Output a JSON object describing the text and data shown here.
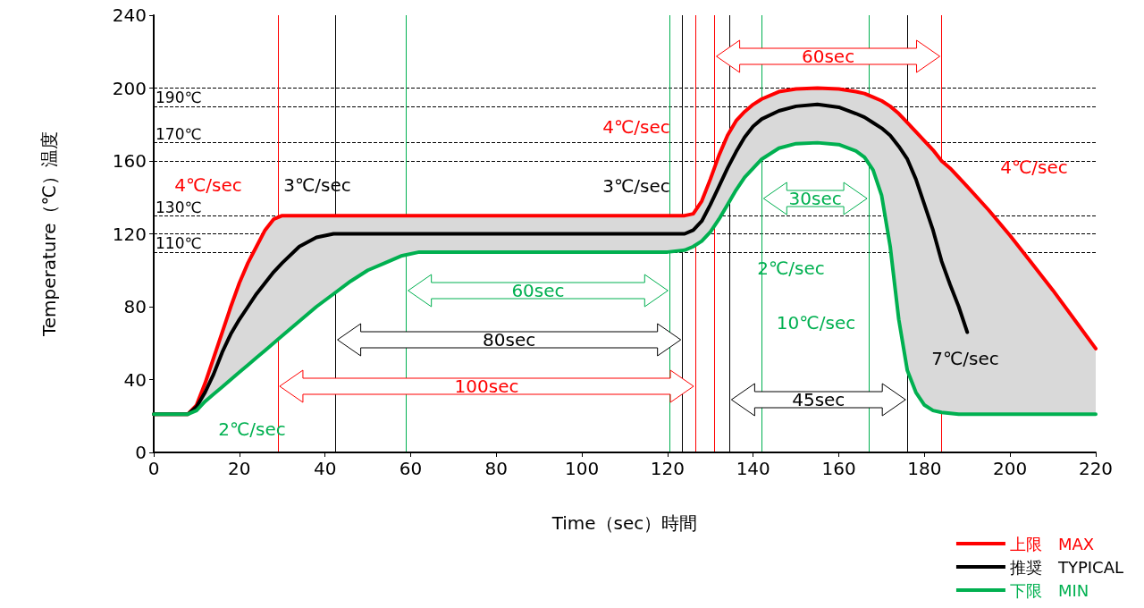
{
  "chart_data": {
    "type": "line",
    "xlabel": "Time（sec）時間",
    "ylabel": "Temperature（℃）温度",
    "x": [
      0,
      8,
      10,
      12,
      14,
      16,
      18,
      20,
      22,
      24,
      26,
      28,
      30,
      34,
      38,
      42,
      46,
      50,
      54,
      58,
      62,
      120,
      124,
      126,
      128,
      130,
      132,
      134,
      136,
      138,
      140,
      142,
      146,
      150,
      155,
      160,
      164,
      166,
      168,
      170,
      172,
      174,
      176,
      178,
      180,
      182,
      184,
      186,
      188,
      190,
      195,
      200,
      205,
      210,
      215,
      220
    ],
    "series": [
      {
        "name": "上限　MAX",
        "color": "#ff0000",
        "values": [
          21,
          21,
          26,
          38,
          52,
          66,
          80,
          93,
          104,
          113,
          122,
          128,
          130,
          130,
          130,
          130,
          130,
          130,
          130,
          130,
          130,
          130,
          130,
          131,
          138,
          150,
          163,
          174,
          182,
          187,
          191,
          194,
          198,
          199.5,
          200,
          199.5,
          198,
          197,
          195,
          193,
          190,
          186,
          181,
          176,
          171,
          166,
          160,
          156,
          151,
          146,
          133,
          119,
          104,
          89,
          73,
          57
        ]
      },
      {
        "name": "推奨　TYPICAL",
        "color": "#000000",
        "values": [
          21,
          21,
          25,
          33,
          43,
          55,
          65,
          73,
          80,
          87,
          93,
          99,
          104,
          113,
          118,
          120,
          120,
          120,
          120,
          120,
          120,
          120,
          120,
          122,
          127,
          136,
          146,
          156,
          165,
          173,
          179,
          183,
          187.5,
          190,
          191,
          189.5,
          186,
          184,
          181,
          178,
          174,
          168,
          161,
          150,
          136,
          122,
          105,
          92,
          80,
          66,
          null,
          null,
          null,
          null,
          null,
          null
        ],
        "lower": [
          21,
          21,
          23,
          28,
          32,
          36,
          40,
          44,
          48,
          52,
          56,
          60,
          64,
          72,
          80,
          87,
          94,
          100,
          104,
          108,
          110,
          110,
          111,
          113,
          116,
          121,
          128,
          136,
          144,
          151,
          156,
          161,
          167,
          169.5,
          170,
          169,
          165.5,
          162,
          155,
          141,
          113,
          73,
          45,
          33,
          26,
          23,
          22,
          21.5,
          21,
          21,
          21,
          21,
          21,
          21,
          21,
          21
        ],
        "upper": [
          21,
          21,
          26,
          38,
          52,
          66,
          80,
          93,
          104,
          113,
          122,
          128,
          130,
          130,
          130,
          130,
          130,
          130,
          130,
          130,
          130,
          130,
          130,
          131,
          138,
          150,
          163,
          174,
          182,
          187,
          191,
          194,
          198,
          199.5,
          200,
          199.5,
          198,
          197,
          195,
          193,
          190,
          186,
          181,
          176,
          171,
          166,
          160,
          156,
          151,
          146,
          133,
          119,
          104,
          89,
          73,
          57
        ]
      },
      {
        "name": "下限　MIN",
        "color": "#00b050",
        "values": [
          21,
          21,
          23,
          28,
          32,
          36,
          40,
          44,
          48,
          52,
          56,
          60,
          64,
          72,
          80,
          87,
          94,
          100,
          104,
          108,
          110,
          110,
          111,
          113,
          116,
          121,
          128,
          136,
          144,
          151,
          156,
          161,
          167,
          169.5,
          170,
          169,
          165.5,
          162,
          155,
          141,
          113,
          73,
          45,
          33,
          26,
          23,
          22,
          21.5,
          21,
          21,
          21,
          21,
          21,
          21,
          21,
          21
        ]
      }
    ],
    "xlim": [
      0,
      220
    ],
    "xticks": [
      0,
      20,
      40,
      60,
      80,
      100,
      120,
      140,
      160,
      180,
      200,
      220
    ],
    "ylim": [
      0,
      240
    ],
    "yticks": [
      0,
      40,
      80,
      120,
      160,
      200,
      240
    ],
    "ref_lines": [
      {
        "axis": "y",
        "value": 200,
        "label": null,
        "line_style": "dashed",
        "color": "#000000"
      },
      {
        "axis": "y",
        "value": 190,
        "label": "190℃",
        "line_style": "dashed",
        "color": "#000000"
      },
      {
        "axis": "y",
        "value": 170,
        "label": "170℃",
        "line_style": "dashed",
        "color": "#000000"
      },
      {
        "axis": "y",
        "value": 160,
        "label": null,
        "line_style": "dashed",
        "color": "#000000"
      },
      {
        "axis": "y",
        "value": 130,
        "label": "130℃",
        "line_style": "dashed",
        "color": "#000000"
      },
      {
        "axis": "y",
        "value": 120,
        "label": null,
        "line_style": "dashed",
        "color": "#000000"
      },
      {
        "axis": "y",
        "value": 110,
        "label": "110℃",
        "line_style": "dashed",
        "color": "#000000"
      },
      {
        "axis": "x",
        "value": 131,
        "label": null,
        "line_style": "solid",
        "color": "#ff0000"
      },
      {
        "axis": "x",
        "value": 184,
        "label": null,
        "line_style": "solid",
        "color": "#ff0000"
      },
      {
        "axis": "x",
        "value": 142,
        "label": null,
        "line_style": "solid",
        "color": "#00b050"
      },
      {
        "axis": "x",
        "value": 167,
        "label": null,
        "line_style": "solid",
        "color": "#00b050"
      },
      {
        "axis": "x",
        "value": 134.5,
        "label": null,
        "line_style": "solid",
        "color": "#000000"
      },
      {
        "axis": "x",
        "value": 176,
        "label": null,
        "line_style": "solid",
        "color": "#000000"
      },
      {
        "axis": "x",
        "value": 59,
        "label": null,
        "line_style": "solid",
        "color": "#00b050"
      },
      {
        "axis": "x",
        "value": 120.5,
        "label": null,
        "line_style": "solid",
        "color": "#00b050"
      },
      {
        "axis": "x",
        "value": 42.5,
        "label": null,
        "line_style": "solid",
        "color": "#000000"
      },
      {
        "axis": "x",
        "value": 123.5,
        "label": null,
        "line_style": "solid",
        "color": "#000000"
      },
      {
        "axis": "x",
        "value": 29,
        "label": null,
        "line_style": "solid",
        "color": "#ff0000"
      },
      {
        "axis": "x",
        "value": 126.5,
        "label": null,
        "line_style": "solid",
        "color": "#ff0000"
      }
    ],
    "annotations": [
      "60sec",
      "30sec",
      "45sec",
      "60sec",
      "80sec",
      "100sec",
      "4℃/sec",
      "3℃/sec",
      "2℃/sec",
      "3℃/sec",
      "4℃/sec",
      "2℃/sec",
      "10℃/sec",
      "7℃/sec",
      "4℃/sec"
    ],
    "legend": "bottom right",
    "marker": "none",
    "line_style": "solid",
    "grid": false
  }
}
